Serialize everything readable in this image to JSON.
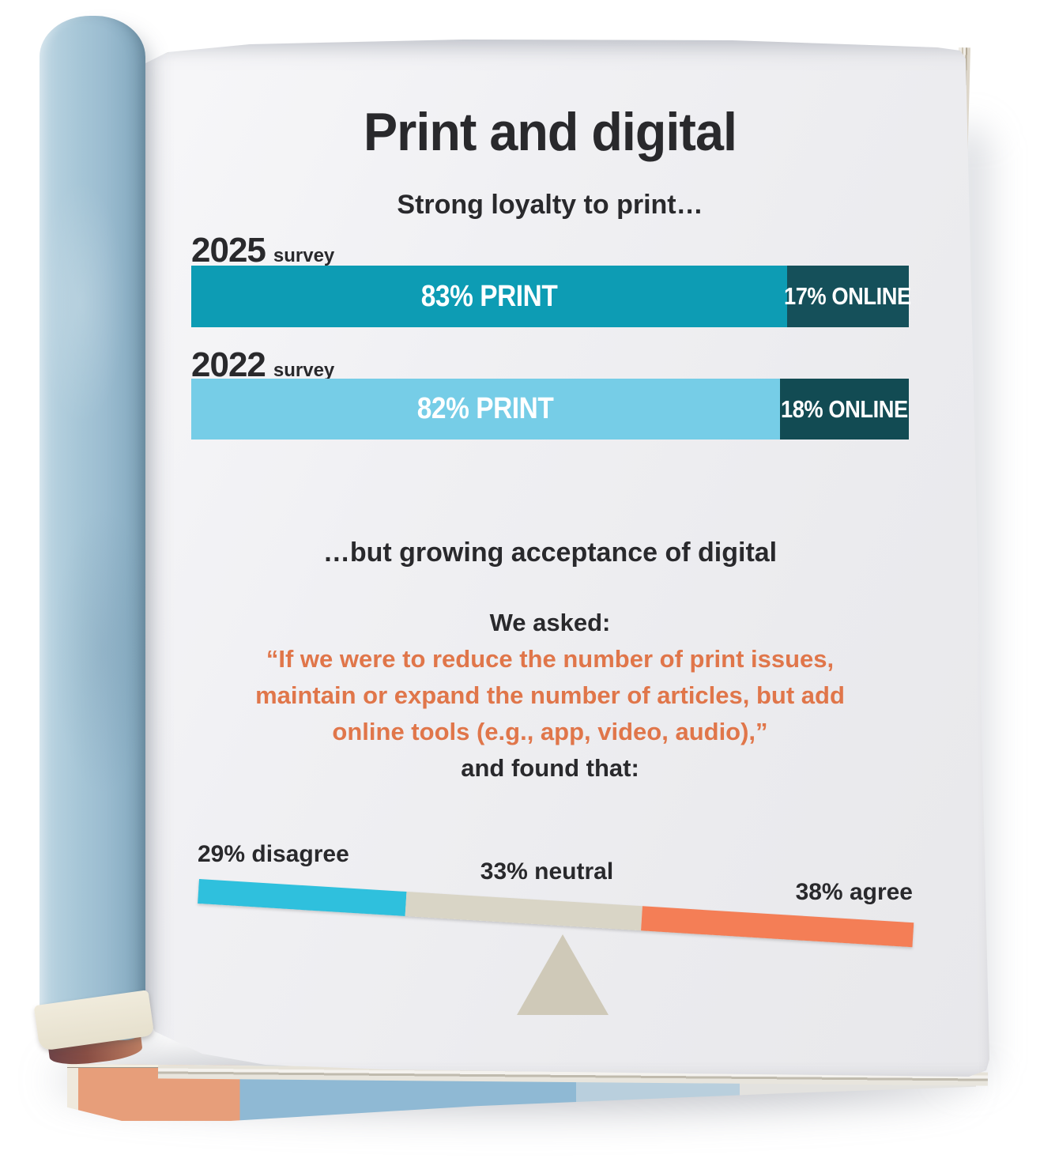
{
  "page": {
    "title": "Print and digital",
    "subtitle": "Strong loyalty to print…"
  },
  "surveys": [
    {
      "year": "2025",
      "year_suffix": "survey",
      "print": {
        "label": "83% PRINT",
        "pct": 83,
        "color": "#0d9cb4"
      },
      "online": {
        "label": "17% ONLINE",
        "pct": 17,
        "color": "#15505a"
      }
    },
    {
      "year": "2022",
      "year_suffix": "survey",
      "print": {
        "label": "82% PRINT",
        "pct": 82,
        "color": "#76cde7"
      },
      "online": {
        "label": "18% ONLINE",
        "pct": 18,
        "color": "#124b53"
      }
    }
  ],
  "acceptance": {
    "heading": "…but growing acceptance of digital",
    "we_asked": "We asked:",
    "quote_line1": "“If we were to reduce the number of print issues,",
    "quote_line2": "maintain or expand the number of articles, but add",
    "quote_line3": "online tools (e.g., app, video, audio),”",
    "quote_color": "#e0764a",
    "and_found": "and found that:"
  },
  "seesaw": {
    "segments": [
      {
        "label": "29% disagree",
        "pct": 29,
        "color": "#2fc0dd"
      },
      {
        "label": "33% neutral",
        "pct": 33,
        "color": "#d9d5c6"
      },
      {
        "label": "38% agree",
        "pct": 38,
        "color": "#f47e56"
      }
    ],
    "fulcrum_color": "#cfc9b8"
  },
  "chart_data": [
    {
      "type": "bar",
      "subtype": "horizontal-stacked",
      "title": "Strong loyalty to print…",
      "categories": [
        "2025 survey",
        "2022 survey"
      ],
      "series": [
        {
          "name": "Print",
          "values": [
            83,
            82
          ],
          "colors": [
            "#0d9cb4",
            "#76cde7"
          ]
        },
        {
          "name": "Online",
          "values": [
            17,
            18
          ],
          "colors": [
            "#15505a",
            "#124b53"
          ]
        }
      ],
      "unit": "percent",
      "data_labels": [
        [
          "83% PRINT",
          "17% ONLINE"
        ],
        [
          "82% PRINT",
          "18% ONLINE"
        ]
      ],
      "xlim": [
        0,
        100
      ],
      "legend": "none",
      "grid": false
    },
    {
      "type": "bar",
      "subtype": "seesaw-balance",
      "title": "…but growing acceptance of digital",
      "categories": [
        "disagree",
        "neutral",
        "agree"
      ],
      "values": [
        29,
        33,
        38
      ],
      "colors": [
        "#2fc0dd",
        "#d9d5c6",
        "#f47e56"
      ],
      "unit": "percent",
      "annotation": "single tilted bar balanced on a triangular fulcrum, tilted down toward the agree side",
      "legend": "none",
      "grid": false
    }
  ]
}
